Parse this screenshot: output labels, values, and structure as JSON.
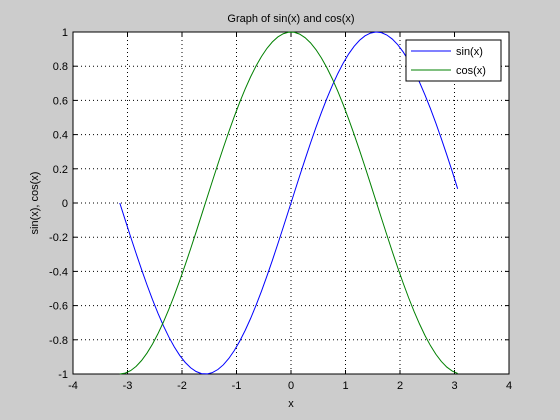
{
  "figure": {
    "background": "#cccccc",
    "axes_background": "#ffffff"
  },
  "chart_data": {
    "type": "line",
    "title": "Graph of sin(x) and cos(x)",
    "xlabel": "x",
    "ylabel": "sin(x), cos(x)",
    "xlim": [
      -4,
      4
    ],
    "ylim": [
      -1,
      1
    ],
    "xticks": [
      "-4",
      "-3",
      "-2",
      "-1",
      "0",
      "1",
      "2",
      "3",
      "4"
    ],
    "yticks": [
      "-1",
      "-0.8",
      "-0.6",
      "-0.4",
      "-0.2",
      "0",
      "0.2",
      "0.4",
      "0.6",
      "0.8",
      "1"
    ],
    "grid": true,
    "grid_style": "dotted",
    "legend_position": "top-right",
    "x": [
      -3.1416,
      -3.0416,
      -2.9416,
      -2.8416,
      -2.7416,
      -2.6416,
      -2.5416,
      -2.4416,
      -2.3416,
      -2.2416,
      -2.1416,
      -2.0416,
      -1.9416,
      -1.8416,
      -1.7416,
      -1.6416,
      -1.5416,
      -1.4416,
      -1.3416,
      -1.2416,
      -1.1416,
      -1.0416,
      -0.9416,
      -0.8416,
      -0.7416,
      -0.6416,
      -0.5416,
      -0.4416,
      -0.3416,
      -0.2416,
      -0.1416,
      -0.0416,
      0.0584,
      0.1584,
      0.2584,
      0.3584,
      0.4584,
      0.5584,
      0.6584,
      0.7584,
      0.8584,
      0.9584,
      1.0584,
      1.1584,
      1.2584,
      1.3584,
      1.4584,
      1.5584,
      1.6584,
      1.7584,
      1.8584,
      1.9584,
      2.0584,
      2.1584,
      2.2584,
      2.3584,
      2.4584,
      2.5584,
      2.6584,
      2.7584,
      2.8584,
      2.9584,
      3.0584
    ],
    "series": [
      {
        "name": "sin(x)",
        "color": "#0000ff",
        "values": [
          0.0,
          -0.0998,
          -0.1987,
          -0.2955,
          -0.3894,
          -0.4794,
          -0.5646,
          -0.6442,
          -0.7174,
          -0.7833,
          -0.8415,
          -0.8912,
          -0.932,
          -0.9636,
          -0.9854,
          -0.9975,
          -0.9996,
          -0.9917,
          -0.9738,
          -0.9463,
          -0.9093,
          -0.8632,
          -0.8085,
          -0.7457,
          -0.6755,
          -0.5985,
          -0.5155,
          -0.4274,
          -0.335,
          -0.2392,
          -0.1411,
          -0.0416,
          0.0584,
          0.1577,
          0.2555,
          0.3508,
          0.4425,
          0.5298,
          0.6116,
          0.6878,
          0.7567,
          0.8183,
          0.8719,
          0.9164,
          0.9516,
          0.9777,
          0.9937,
          0.9999,
          0.9961,
          0.9824,
          0.9587,
          0.9257,
          0.8834,
          0.8323,
          0.7731,
          0.7062,
          0.6322,
          0.5523,
          0.4665,
          0.3761,
          0.2817,
          0.1846,
          0.0831
        ]
      },
      {
        "name": "cos(x)",
        "color": "#008000",
        "values": [
          -1.0,
          -0.995,
          -0.9801,
          -0.9553,
          -0.9211,
          -0.8776,
          -0.8253,
          -0.7648,
          -0.6967,
          -0.6216,
          -0.5403,
          -0.4536,
          -0.3624,
          -0.2675,
          -0.17,
          -0.0707,
          0.0292,
          0.1288,
          0.2272,
          0.3233,
          0.4161,
          0.5048,
          0.5885,
          0.6663,
          0.7374,
          0.8011,
          0.8569,
          0.9041,
          0.9422,
          0.971,
          0.99,
          0.9991,
          0.9983,
          0.9875,
          0.9668,
          0.9365,
          0.8968,
          0.8481,
          0.791,
          0.726,
          0.6536,
          0.5748,
          0.4903,
          0.4008,
          0.3074,
          0.2111,
          0.1122,
          0.0124,
          -0.0876,
          -0.1865,
          -0.2838,
          -0.378,
          -0.4685,
          -0.5541,
          -0.634,
          -0.7077,
          -0.7747,
          -0.8337,
          -0.8846,
          -0.9265,
          -0.9594,
          -0.9828,
          -0.9965
        ]
      }
    ]
  }
}
